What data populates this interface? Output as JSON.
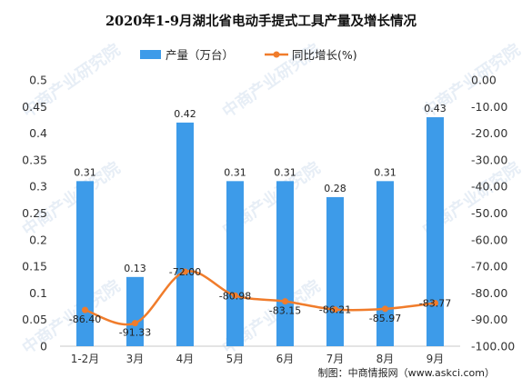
{
  "chart_data": {
    "type": "bar+line",
    "title": "2020年1-9月湖北省电动手提式工具产量及增长情况",
    "categories": [
      "1-2月",
      "3月",
      "4月",
      "5月",
      "6月",
      "7月",
      "8月",
      "9月"
    ],
    "series": [
      {
        "name": "产量（万台）",
        "type": "bar",
        "axis": "left",
        "values": [
          0.31,
          0.13,
          0.42,
          0.31,
          0.31,
          0.28,
          0.31,
          0.43
        ],
        "labels": [
          "0.31",
          "0.13",
          "0.42",
          "0.31",
          "0.31",
          "0.28",
          "0.31",
          "0.43"
        ],
        "color": "#3d9be9"
      },
      {
        "name": "同比增长(%)",
        "type": "line",
        "axis": "right",
        "values": [
          -86.4,
          -91.33,
          -72.0,
          -80.98,
          -83.15,
          -86.21,
          -85.97,
          -83.77
        ],
        "labels": [
          "-86.40",
          "-91.33",
          "-72.00",
          "-80.98",
          "-83.15",
          "-86.21",
          "-85.97",
          "-83.77"
        ],
        "color": "#f07c2b"
      }
    ],
    "y_left": {
      "min": 0,
      "max": 0.5,
      "ticks": [
        "0",
        "0.05",
        "0.1",
        "0.15",
        "0.2",
        "0.25",
        "0.3",
        "0.35",
        "0.4",
        "0.45",
        "0.5"
      ]
    },
    "y_right": {
      "min": -100,
      "max": 0,
      "ticks": [
        "0.00",
        "-10.00",
        "-20.00",
        "-30.00",
        "-40.00",
        "-50.00",
        "-60.00",
        "-70.00",
        "-80.00",
        "-90.00",
        "-100.00"
      ]
    },
    "grid": false,
    "legend_position": "top-center"
  },
  "source": "制图：中商情报网（www.askci.com）",
  "watermark": "中商产业研究院"
}
